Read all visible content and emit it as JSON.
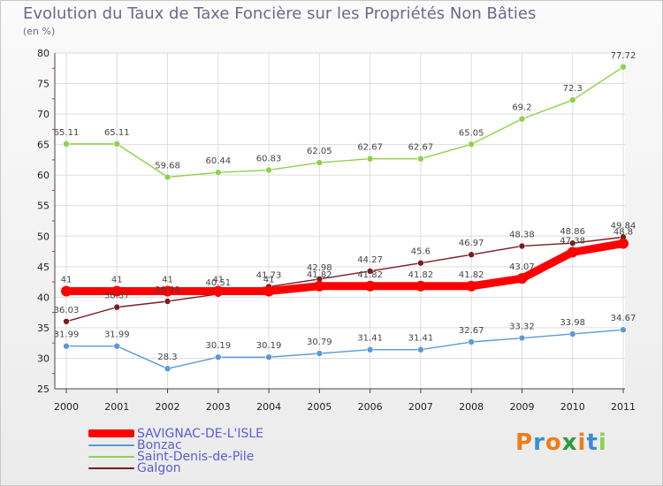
{
  "title": "Evolution du Taux de Taxe Foncière sur les Propriétés Non Bâties",
  "unit": "(en %)",
  "logo": "Proxiti",
  "chart_data": {
    "type": "line",
    "title": "Evolution du Taux de Taxe Foncière sur les Propriétés Non Bâties",
    "ylabel": "(en %)",
    "xlabel": "",
    "ylim": [
      25,
      80
    ],
    "yticks": [
      25,
      30,
      35,
      40,
      45,
      50,
      55,
      60,
      65,
      70,
      75,
      80
    ],
    "categories": [
      "2000",
      "2001",
      "2002",
      "2003",
      "2004",
      "2005",
      "2006",
      "2007",
      "2008",
      "2009",
      "2010",
      "2011"
    ],
    "legend_position": "bottom-left",
    "series": [
      {
        "name": "Saint-Denis-de-Pile",
        "color": "#8fd14a",
        "values": [
          65.11,
          65.11,
          59.68,
          60.44,
          60.83,
          62.05,
          62.67,
          62.67,
          65.05,
          69.2,
          72.3,
          77.72
        ],
        "labels": [
          "65.11",
          "65.11",
          "59.68",
          "60.44",
          "60.83",
          "62.05",
          "62.67",
          "62.67",
          "65.05",
          "69.2",
          "72.3",
          "77.72"
        ]
      },
      {
        "name": "Galgon",
        "color": "#7a1c22",
        "values": [
          36.03,
          38.37,
          39.33,
          40.51,
          41.73,
          42.98,
          44.27,
          45.6,
          46.97,
          48.38,
          48.86,
          49.84
        ],
        "labels": [
          "36.03",
          "38.37",
          "39.33",
          "40.51",
          "41.73",
          "42.98",
          "44.27",
          "45.6",
          "46.97",
          "48.38",
          "48.86",
          "49.84"
        ]
      },
      {
        "name": "Bonzac",
        "color": "#5a9ad6",
        "values": [
          31.99,
          31.99,
          28.3,
          30.19,
          30.19,
          30.79,
          31.41,
          31.41,
          32.67,
          33.32,
          33.98,
          34.67
        ],
        "labels": [
          "31.99",
          "31.99",
          "28.3",
          "30.19",
          "30.19",
          "30.79",
          "31.41",
          "31.41",
          "32.67",
          "33.32",
          "33.98",
          "34.67"
        ]
      },
      {
        "name": "SAVIGNAC-DE-L'ISLE",
        "color": "#ff0000",
        "values": [
          41,
          41,
          41,
          41,
          41,
          41.82,
          41.82,
          41.82,
          41.82,
          43.07,
          47.38,
          48.8
        ],
        "labels": [
          "41",
          "41",
          "41",
          "41",
          "41",
          "41.82",
          "41.82",
          "41.82",
          "41.82",
          "43.07",
          "47.38",
          "48.8"
        ]
      }
    ]
  },
  "legend": [
    {
      "label": "SAVIGNAC-DE-L'ISLE",
      "color": "#ff0000"
    },
    {
      "label": "Bonzac",
      "color": "#5a9ad6"
    },
    {
      "label": "Saint-Denis-de-Pile",
      "color": "#8fd14a"
    },
    {
      "label": "Galgon",
      "color": "#7a1c22"
    }
  ]
}
